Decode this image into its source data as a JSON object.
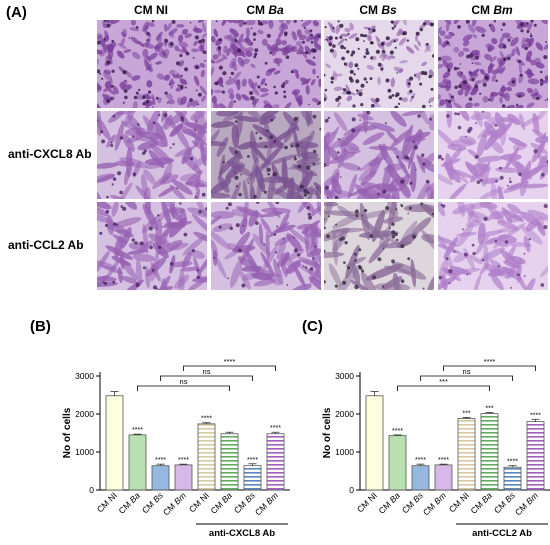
{
  "figure": {
    "panel_a_label": "(A)",
    "panel_b_label": "(B)",
    "panel_c_label": "(C)",
    "columns": [
      {
        "prefix": "CM",
        "name": "NI",
        "italic": false
      },
      {
        "prefix": "CM",
        "name": "Ba",
        "italic": true
      },
      {
        "prefix": "CM",
        "name": "Bs",
        "italic": true
      },
      {
        "prefix": "CM",
        "name": "Bm",
        "italic": true
      }
    ],
    "rows": [
      "",
      "anti-CXCL8 Ab",
      "anti-CCL2 Ab"
    ],
    "micrograph_styles": [
      [
        "dense",
        "dense",
        "sparse",
        "dense"
      ],
      [
        "spread",
        "spread-dark",
        "spread",
        "spread-light"
      ],
      [
        "spread",
        "spread",
        "sparse-grey",
        "spread-light"
      ]
    ]
  },
  "chart_data": [
    {
      "type": "bar",
      "panel": "(B)",
      "ylabel": "No of cells",
      "ylim": [
        0,
        3000
      ],
      "yticks": [
        "0",
        "1000",
        "2000",
        "3000"
      ],
      "categories": [
        {
          "prefix": "CM",
          "name": "NI",
          "italic": false
        },
        {
          "prefix": "CM",
          "name": "Ba",
          "italic": true
        },
        {
          "prefix": "CM",
          "name": "Bs",
          "italic": true
        },
        {
          "prefix": "CM",
          "name": "Bm",
          "italic": true
        },
        {
          "prefix": "CM",
          "name": "NI",
          "italic": false
        },
        {
          "prefix": "CM",
          "name": "Ba",
          "italic": true
        },
        {
          "prefix": "CM",
          "name": "Bs",
          "italic": true
        },
        {
          "prefix": "CM",
          "name": "Bm",
          "italic": true
        }
      ],
      "values": [
        2480,
        1450,
        640,
        660,
        1740,
        1480,
        640,
        1480
      ],
      "errors": [
        110,
        20,
        40,
        20,
        30,
        40,
        50,
        40
      ],
      "significance": [
        "",
        "****",
        "****",
        "****",
        "****",
        "",
        "****",
        "****"
      ],
      "fills": [
        "#fdfde0",
        "#b8e0b0",
        "#94b8e0",
        "#d8b8e8",
        "hstripe-tan",
        "hstripe-green",
        "hstripe-blue",
        "hstripe-purple"
      ],
      "brackets": [
        {
          "from": 1,
          "to": 5,
          "label": "ns"
        },
        {
          "from": 2,
          "to": 6,
          "label": "ns"
        },
        {
          "from": 3,
          "to": 7,
          "label": "****"
        }
      ],
      "group_label": "anti-CXCL8 Ab",
      "group_range": [
        4,
        7
      ]
    },
    {
      "type": "bar",
      "panel": "(C)",
      "ylabel": "No of cells",
      "ylim": [
        0,
        3000
      ],
      "yticks": [
        "0",
        "1000",
        "2000",
        "3000"
      ],
      "categories": [
        {
          "prefix": "CM",
          "name": "NI",
          "italic": false
        },
        {
          "prefix": "CM",
          "name": "Ba",
          "italic": true
        },
        {
          "prefix": "CM",
          "name": "Bs",
          "italic": true
        },
        {
          "prefix": "CM",
          "name": "Bm",
          "italic": true
        },
        {
          "prefix": "CM",
          "name": "NI",
          "italic": false
        },
        {
          "prefix": "CM",
          "name": "Ba",
          "italic": true
        },
        {
          "prefix": "CM",
          "name": "Bs",
          "italic": true
        },
        {
          "prefix": "CM",
          "name": "Bm",
          "italic": true
        }
      ],
      "values": [
        2480,
        1430,
        640,
        660,
        1880,
        2010,
        600,
        1800
      ],
      "errors": [
        110,
        20,
        40,
        20,
        30,
        30,
        40,
        60
      ],
      "significance": [
        "",
        "****",
        "****",
        "****",
        "***",
        "***",
        "****",
        "****"
      ],
      "fills": [
        "#fdfde0",
        "#b8e0b0",
        "#94b8e0",
        "#d8b8e8",
        "hstripe-tan",
        "hstripe-green",
        "hstripe-blue",
        "hstripe-purple"
      ],
      "brackets": [
        {
          "from": 1,
          "to": 5,
          "label": "***"
        },
        {
          "from": 2,
          "to": 6,
          "label": "ns"
        },
        {
          "from": 3,
          "to": 7,
          "label": "****"
        }
      ],
      "group_label": "anti-CCL2 Ab",
      "group_range": [
        4,
        7
      ]
    }
  ]
}
